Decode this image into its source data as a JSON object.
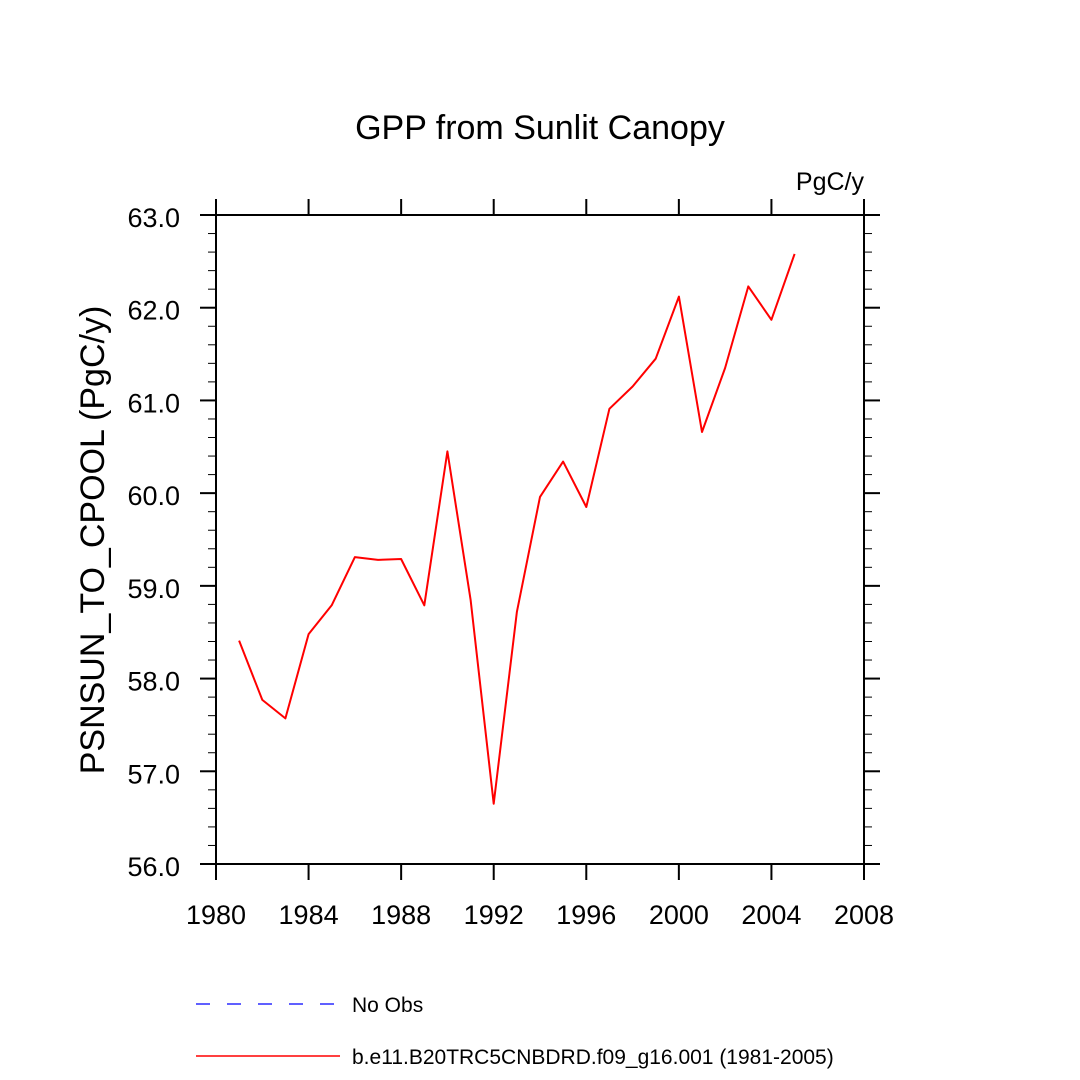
{
  "chart_data": {
    "type": "line",
    "title": "GPP from Sunlit Canopy",
    "units_label": "PgC/y",
    "xlabel": "",
    "ylabel": "PSNSUN_TO_CPOOL  (PgC/y)",
    "xlim": [
      1980,
      2008
    ],
    "ylim": [
      56.0,
      63.0
    ],
    "x_ticks": [
      1980,
      1984,
      1988,
      1992,
      1996,
      2000,
      2004,
      2008
    ],
    "x_tick_labels": [
      "1980",
      "1984",
      "1988",
      "1992",
      "1996",
      "2000",
      "2004",
      "2008"
    ],
    "y_ticks": [
      56.0,
      57.0,
      58.0,
      59.0,
      60.0,
      61.0,
      62.0,
      63.0
    ],
    "y_tick_labels": [
      "56.0",
      "57.0",
      "58.0",
      "59.0",
      "60.0",
      "61.0",
      "62.0",
      "63.0"
    ],
    "grid": false,
    "series": [
      {
        "name": "b.e11.B20TRC5CNBDRD.f09_g16.001 (1981-2005)",
        "color": "#ff0000",
        "dash": "solid",
        "x": [
          1981,
          1982,
          1983,
          1984,
          1985,
          1986,
          1987,
          1988,
          1989,
          1990,
          1991,
          1992,
          1993,
          1994,
          1995,
          1996,
          1997,
          1998,
          1999,
          2000,
          2001,
          2002,
          2003,
          2004,
          2005
        ],
        "y": [
          58.41,
          57.77,
          57.57,
          58.48,
          58.79,
          59.31,
          59.28,
          59.29,
          58.79,
          60.45,
          58.85,
          56.65,
          58.72,
          59.96,
          60.34,
          59.85,
          60.91,
          61.15,
          61.45,
          62.12,
          60.66,
          61.35,
          62.23,
          61.87,
          62.58
        ]
      }
    ],
    "legend": [
      {
        "label": "No Obs",
        "color": "#0000ff",
        "dash": "dashed"
      },
      {
        "label": "b.e11.B20TRC5CNBDRD.f09_g16.001 (1981-2005)",
        "color": "#ff0000",
        "dash": "solid"
      }
    ],
    "legend_position": "bottom"
  }
}
